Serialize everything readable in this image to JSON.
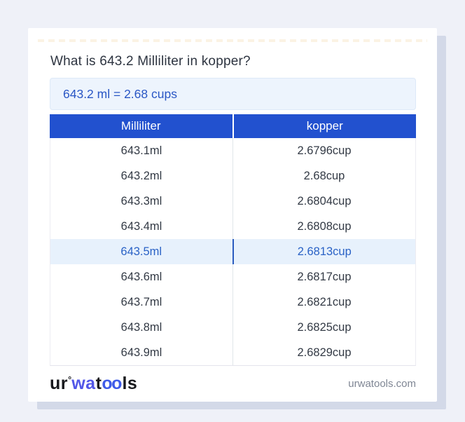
{
  "header": {
    "title": "What is 643.2 Milliliter in kopper?"
  },
  "result": {
    "text": "643.2 ml = 2.68 cups"
  },
  "table": {
    "columns": [
      "Milliliter",
      "kopper"
    ],
    "rows": [
      {
        "ml": "643.1ml",
        "cup": "2.6796cup"
      },
      {
        "ml": "643.2ml",
        "cup": "2.68cup"
      },
      {
        "ml": "643.3ml",
        "cup": "2.6804cup"
      },
      {
        "ml": "643.4ml",
        "cup": "2.6808cup"
      },
      {
        "ml": "643.5ml",
        "cup": "2.6813cup"
      },
      {
        "ml": "643.6ml",
        "cup": "2.6817cup"
      },
      {
        "ml": "643.7ml",
        "cup": "2.6821cup"
      },
      {
        "ml": "643.8ml",
        "cup": "2.6825cup"
      },
      {
        "ml": "643.9ml",
        "cup": "2.6829cup"
      }
    ],
    "highlighted_row_value": "643.5ml"
  },
  "footer": {
    "logo": {
      "seg1": "ur",
      "degree": "°",
      "seg2": "wa",
      "seg3": "t",
      "seg4": "oo",
      "seg5": "ls"
    },
    "domain": "urwatools.com"
  },
  "colors": {
    "page_background": "#eff1f8",
    "card_shadow": "#d3d9e8",
    "table_header_blue": "#2251cf",
    "result_box_background": "#edf4fd",
    "result_text_blue": "#2a57c5",
    "highlight_row_background": "#e7f1fc",
    "highlight_row_text": "#2a62c6",
    "logo_blue": "#5156e8"
  }
}
